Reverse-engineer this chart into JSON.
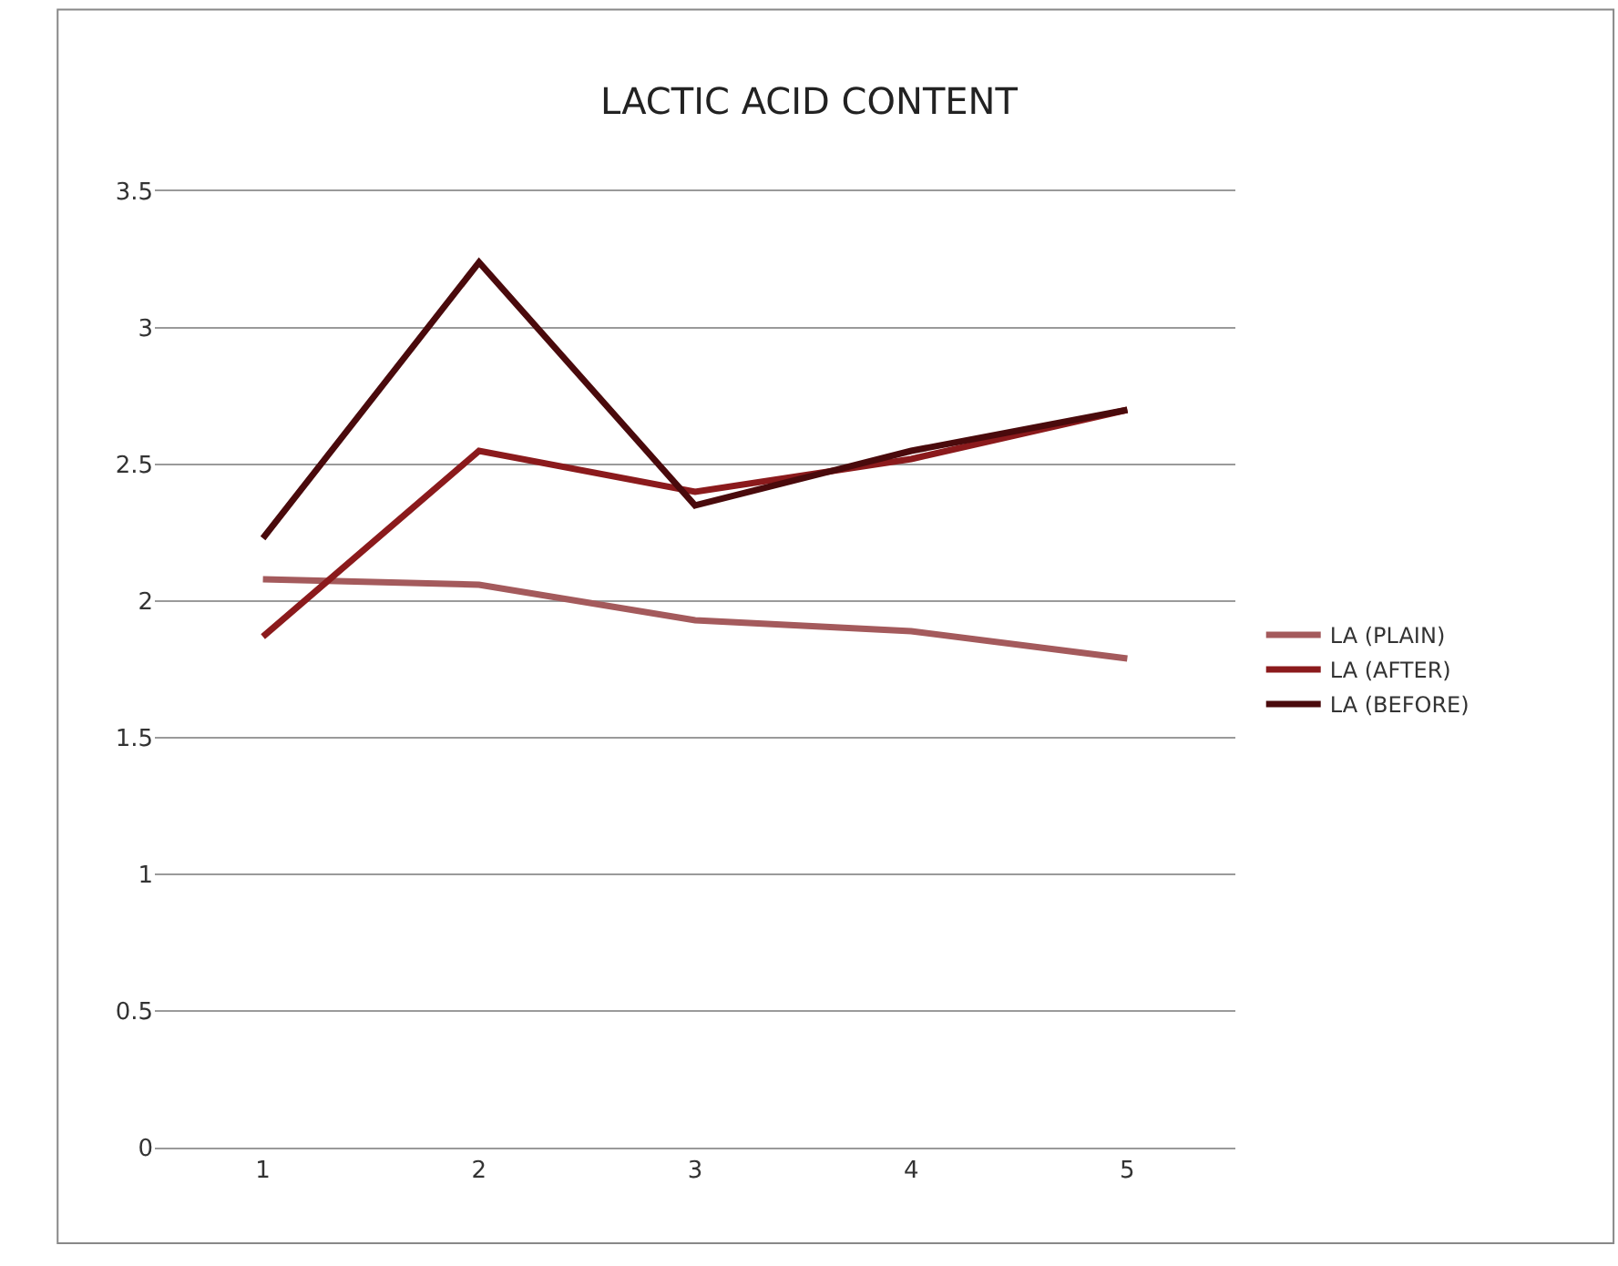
{
  "chart_data": {
    "type": "line",
    "title": "LACTIC ACID CONTENT",
    "categories": [
      "1",
      "2",
      "3",
      "4",
      "5"
    ],
    "series": [
      {
        "name": "LA (PLAIN)",
        "color": "#a45a5c",
        "values": [
          2.08,
          2.06,
          1.93,
          1.89,
          1.79
        ]
      },
      {
        "name": "LA (AFTER)",
        "color": "#8b1a1c",
        "values": [
          1.87,
          2.55,
          2.4,
          2.52,
          2.7
        ]
      },
      {
        "name": "LA (BEFORE)",
        "color": "#4a0a0c",
        "values": [
          2.23,
          3.24,
          2.35,
          2.55,
          2.7
        ]
      }
    ],
    "ylim": [
      0,
      3.5
    ],
    "yticks": [
      0,
      0.5,
      1,
      1.5,
      2,
      2.5,
      3,
      3.5
    ],
    "grid": "y",
    "legend": "right",
    "marker": "none",
    "line_style": "solid"
  }
}
